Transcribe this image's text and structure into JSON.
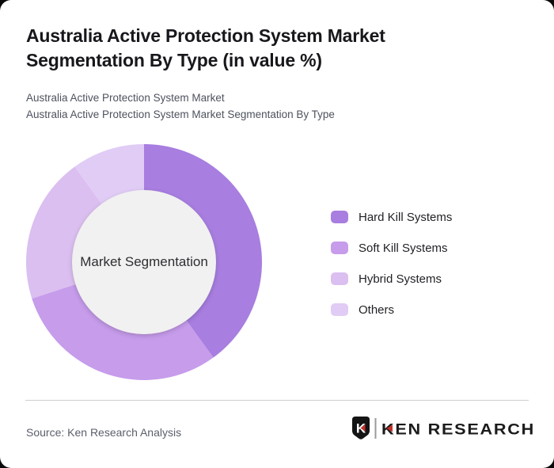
{
  "page": {
    "background_color": "#0a0a0a",
    "card_color": "#ffffff"
  },
  "header": {
    "title": "Australia Active Protection System Market Segmentation By Type (in value %)",
    "subtitle_line1": "Australia Active Protection System Market",
    "subtitle_line2": "Australia Active Protection System Market Segmentation By Type"
  },
  "chart_data": {
    "type": "pie",
    "variant": "donut",
    "title": "Australia Active Protection System Market Segmentation By Type (in value %)",
    "unit": "value %",
    "center_label": "Market Segmentation",
    "start_angle_deg": 0,
    "direction": "clockwise",
    "legend_position": "right",
    "center_circle_color": "#f1f1f1",
    "series": [
      {
        "name": "Hard Kill Systems",
        "value": 40,
        "color": "#a87ee0"
      },
      {
        "name": "Soft Kill Systems",
        "value": 30,
        "color": "#c69ceb"
      },
      {
        "name": "Hybrid Systems",
        "value": 20,
        "color": "#dbbff0"
      },
      {
        "name": "Others",
        "value": 10,
        "color": "#e0ccf5"
      }
    ]
  },
  "footer": {
    "source": "Source: Ken Research Analysis",
    "logo": {
      "text": "KEN RESEARCH",
      "emblem_letter": "K",
      "accent_color": "#c5302c",
      "text_color": "#1b1b1b"
    }
  }
}
